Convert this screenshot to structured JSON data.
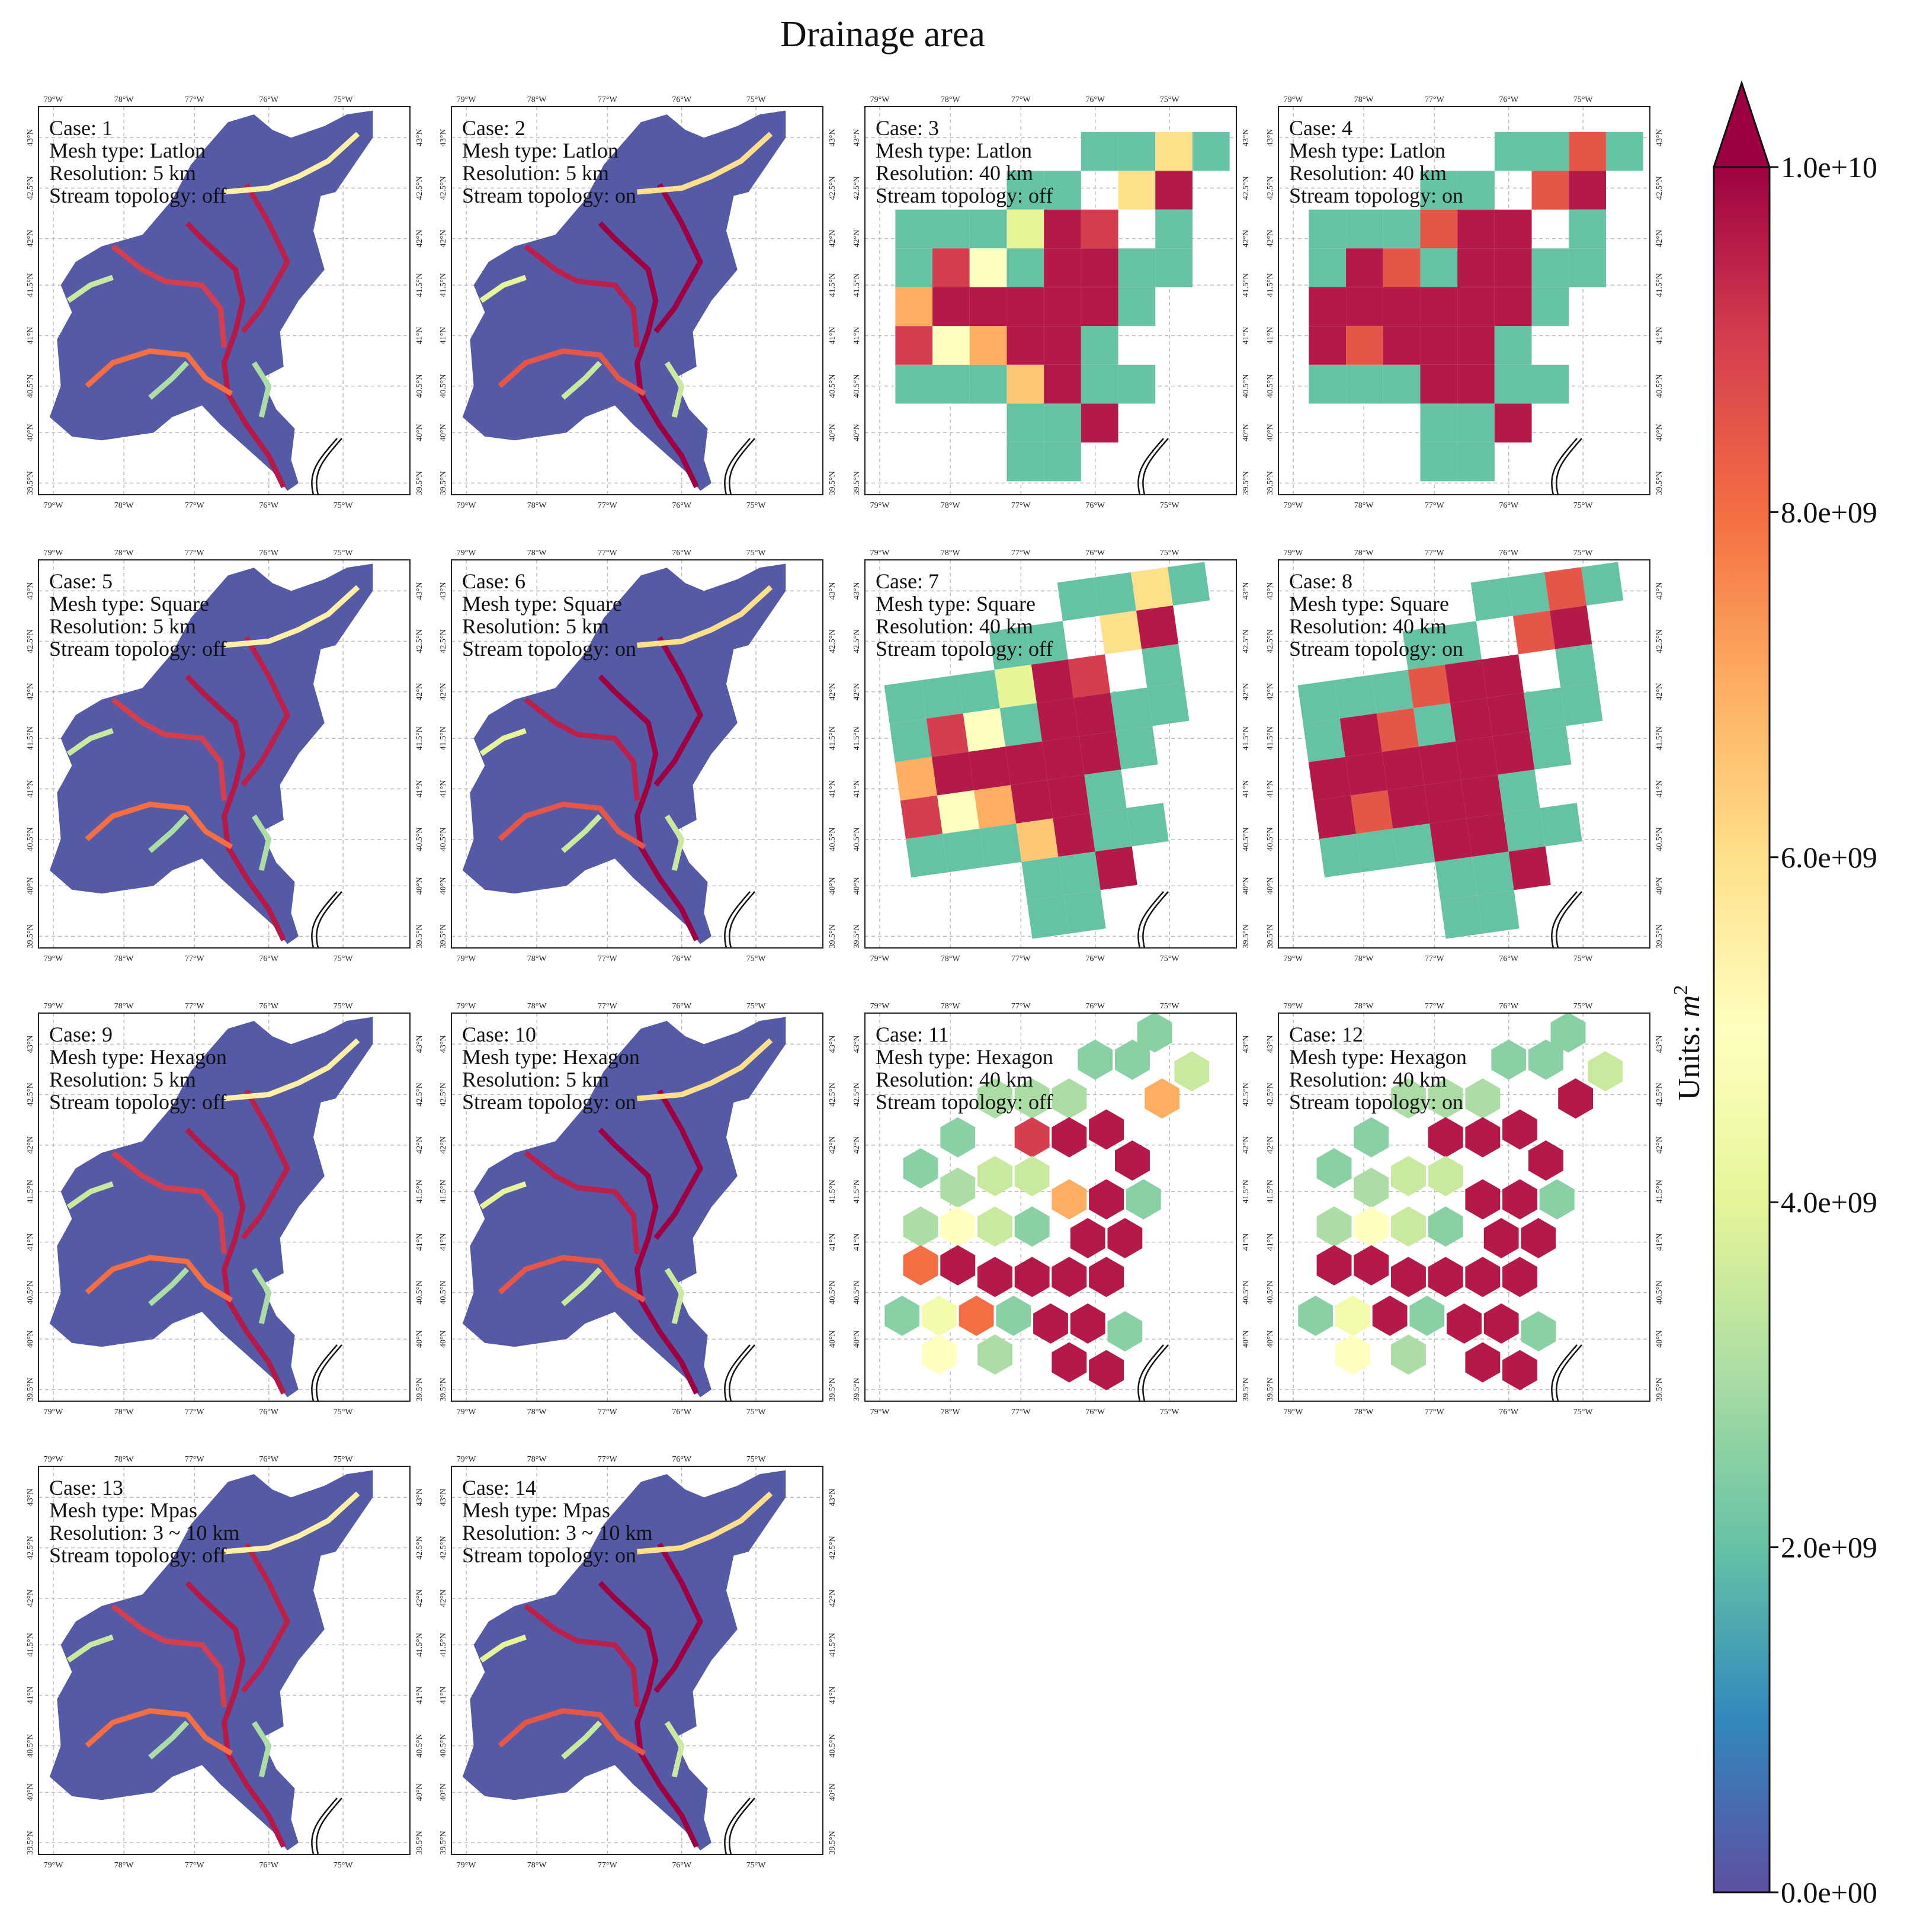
{
  "chart_data": {
    "type": "heatmap",
    "title": "Drainage area",
    "lon_ticks": [
      "79°W",
      "78°W",
      "77°W",
      "76°W",
      "75°W"
    ],
    "lat_ticks": [
      "39.5°N",
      "40°N",
      "40.5°N",
      "41°N",
      "41.5°N",
      "42°N",
      "42.5°N",
      "43°N"
    ],
    "colorbar": {
      "label_prefix": "Units: ",
      "label_var": "m",
      "label_exp": "2",
      "ticks": [
        "0.0e+00",
        "2.0e+09",
        "4.0e+09",
        "6.0e+09",
        "8.0e+09",
        "1.0e+10"
      ],
      "min": 0,
      "max": 10000000000,
      "extend": "max",
      "colormap": "Spectral_r"
    },
    "panels": [
      {
        "case": "Case: 1",
        "mesh": "Mesh type: Latlon",
        "resolution": "Resolution: 5 km",
        "topology": "Stream topology: off"
      },
      {
        "case": "Case: 2",
        "mesh": "Mesh type: Latlon",
        "resolution": "Resolution: 5 km",
        "topology": "Stream topology: on"
      },
      {
        "case": "Case: 3",
        "mesh": "Mesh type: Latlon",
        "resolution": "Resolution: 40 km",
        "topology": "Stream topology: off"
      },
      {
        "case": "Case: 4",
        "mesh": "Mesh type: Latlon",
        "resolution": "Resolution: 40 km",
        "topology": "Stream topology: on"
      },
      {
        "case": "Case: 5",
        "mesh": "Mesh type: Square",
        "resolution": "Resolution: 5 km",
        "topology": "Stream topology: off"
      },
      {
        "case": "Case: 6",
        "mesh": "Mesh type: Square",
        "resolution": "Resolution: 5 km",
        "topology": "Stream topology: on"
      },
      {
        "case": "Case: 7",
        "mesh": "Mesh type: Square",
        "resolution": "Resolution: 40 km",
        "topology": "Stream topology: off"
      },
      {
        "case": "Case: 8",
        "mesh": "Mesh type: Square",
        "resolution": "Resolution: 40 km",
        "topology": "Stream topology: on"
      },
      {
        "case": "Case: 9",
        "mesh": "Mesh type: Hexagon",
        "resolution": "Resolution: 5 km",
        "topology": "Stream topology: off"
      },
      {
        "case": "Case: 10",
        "mesh": "Mesh type: Hexagon",
        "resolution": "Resolution: 5 km",
        "topology": "Stream topology: on"
      },
      {
        "case": "Case: 11",
        "mesh": "Mesh type: Hexagon",
        "resolution": "Resolution: 40 km",
        "topology": "Stream topology: off"
      },
      {
        "case": "Case: 12",
        "mesh": "Mesh type: Hexagon",
        "resolution": "Resolution: 40 km",
        "topology": "Stream topology: on"
      },
      {
        "case": "Case: 13",
        "mesh": "Mesh type: Mpas",
        "resolution": "Resolution: 3 ~ 10 km",
        "topology": "Stream topology: off"
      },
      {
        "case": "Case: 14",
        "mesh": "Mesh type: Mpas",
        "resolution": "Resolution: 3 ~ 10 km",
        "topology": "Stream topology: on"
      }
    ]
  }
}
